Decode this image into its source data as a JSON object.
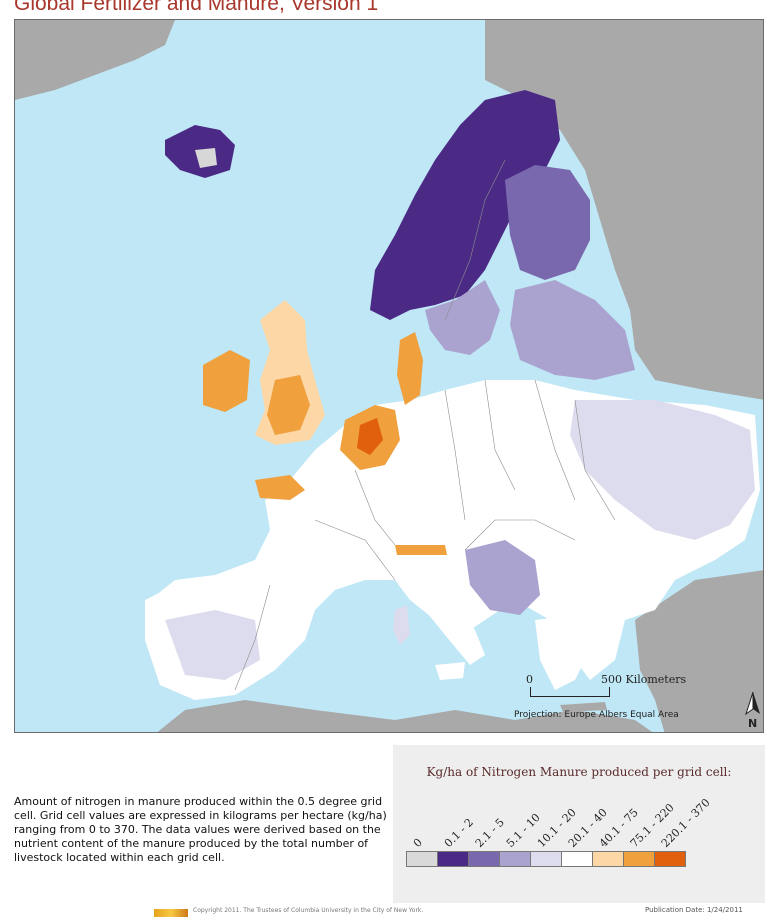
{
  "title": "Global Fertilizer and Manure, Version 1",
  "map": {
    "scale_zero": "0",
    "scale_max": "500 Kilometers",
    "projection": "Projection: Europe Albers Equal Area",
    "north_label": "N",
    "colors": {
      "ocean": "#bfe7f6",
      "land_other": "#a9a9a9",
      "no_data": "#d7d7d7"
    }
  },
  "legend": {
    "title": "Kg/ha of Nitrogen Manure produced per grid cell:",
    "classes": [
      {
        "label": "0",
        "color": "#d9d9d9"
      },
      {
        "label": "0.1 - 2",
        "color": "#4b2a86"
      },
      {
        "label": "2.1 - 5",
        "color": "#7a68ae"
      },
      {
        "label": "5.1 - 10",
        "color": "#aaa3cf"
      },
      {
        "label": "10.1 - 20",
        "color": "#dcdcee"
      },
      {
        "label": "20.1 - 40",
        "color": "#ffffff"
      },
      {
        "label": "40.1 - 75",
        "color": "#fdd7a5"
      },
      {
        "label": "75.1 - 220",
        "color": "#f0a03c"
      },
      {
        "label": "220.1 - 370",
        "color": "#e0600e"
      }
    ]
  },
  "description": "Amount of nitrogen in manure produced within the 0.5 degree grid cell.  Grid cell values are expressed in kilograms per hectare (kg/ha) ranging from 0 to 370. The data values were derived based on the nutrient content of the manure produced by the total number of livestock located within each grid cell.",
  "footer": {
    "copyright": "Copyright 2011. The Trustees of Columbia University in the City of New York.",
    "publication_date": "Publication Date: 1/24/2011"
  }
}
